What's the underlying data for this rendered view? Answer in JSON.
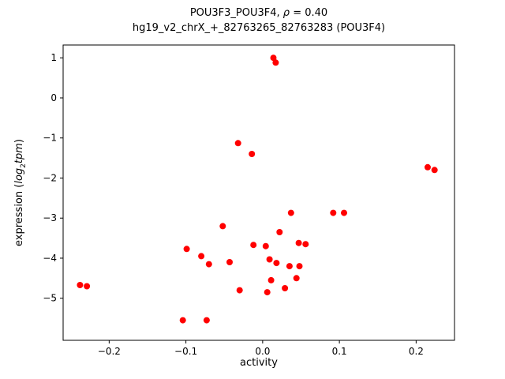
{
  "title": {
    "line1_prefix": "POU3F3_POU3F4, ",
    "rho": "ρ",
    "line1_suffix": " = 0.40",
    "line2": "hg19_v2_chrX_+_82763265_82763283 (POU3F4)"
  },
  "axes": {
    "xlabel": "activity",
    "ylabel_prefix": "expression (",
    "ylabel_log": "log",
    "ylabel_sub": "2",
    "ylabel_tpm": "tpm",
    "ylabel_suffix": ")"
  },
  "chart_data": {
    "type": "scatter",
    "title": "POU3F3_POU3F4, ρ = 0.40",
    "subtitle": "hg19_v2_chrX_+_82763265_82763283 (POU3F4)",
    "xlabel": "activity",
    "ylabel": "expression (log2 tpm)",
    "correlation_rho": 0.4,
    "xlim": [
      -0.26,
      0.25
    ],
    "ylim": [
      -6.05,
      1.32
    ],
    "x_ticks": [
      -0.2,
      -0.1,
      0.0,
      0.1,
      0.2
    ],
    "x_tick_labels": [
      "−0.2",
      "−0.1",
      "0.0",
      "0.1",
      "0.2"
    ],
    "y_ticks": [
      1,
      0,
      -1,
      -2,
      -3,
      -4,
      -5
    ],
    "y_tick_labels": [
      "1",
      "0",
      "−1",
      "−2",
      "−3",
      "−4",
      "−5"
    ],
    "legend": "none",
    "grid": false,
    "marker_color": "#ff0000",
    "marker_diameter_px": 8,
    "points": [
      [
        0.014,
        1.0
      ],
      [
        0.017,
        0.88
      ],
      [
        -0.032,
        -1.13
      ],
      [
        -0.014,
        -1.4
      ],
      [
        0.215,
        -1.73
      ],
      [
        0.224,
        -1.8
      ],
      [
        0.037,
        -2.87
      ],
      [
        0.092,
        -2.87
      ],
      [
        0.106,
        -2.87
      ],
      [
        -0.052,
        -3.2
      ],
      [
        0.022,
        -3.35
      ],
      [
        -0.012,
        -3.67
      ],
      [
        0.004,
        -3.7
      ],
      [
        0.047,
        -3.62
      ],
      [
        0.056,
        -3.65
      ],
      [
        -0.099,
        -3.77
      ],
      [
        -0.08,
        -3.95
      ],
      [
        -0.043,
        -4.1
      ],
      [
        0.009,
        -4.03
      ],
      [
        0.018,
        -4.12
      ],
      [
        -0.07,
        -4.15
      ],
      [
        0.035,
        -4.2
      ],
      [
        0.048,
        -4.2
      ],
      [
        0.011,
        -4.55
      ],
      [
        0.044,
        -4.5
      ],
      [
        0.029,
        -4.75
      ],
      [
        0.006,
        -4.85
      ],
      [
        -0.03,
        -4.8
      ],
      [
        -0.238,
        -4.67
      ],
      [
        -0.229,
        -4.7
      ],
      [
        -0.104,
        -5.55
      ],
      [
        -0.073,
        -5.55
      ]
    ]
  }
}
